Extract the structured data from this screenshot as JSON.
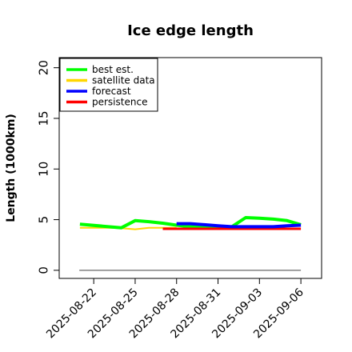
{
  "chart_data": {
    "type": "line",
    "title": "Ice edge length",
    "ylabel": "Length (1000km)",
    "xlabel": "",
    "x_ticks": [
      "2025-08-22",
      "2025-08-25",
      "2025-08-28",
      "2025-08-31",
      "2025-09-03",
      "2025-09-06"
    ],
    "x_tick_colors": [
      "#000000",
      "#000000",
      "#228b22",
      "#000000",
      "#000000",
      "#000000"
    ],
    "y_ticks": [
      "0",
      "5",
      "10",
      "15",
      "20"
    ],
    "ylim": [
      -0.8,
      21
    ],
    "xlim": [
      "2025-08-19T12:00",
      "2025-09-07T12:00"
    ],
    "grid": false,
    "legend_position": "top-left",
    "baseline": {
      "y": 0,
      "color": "#808080"
    },
    "series": [
      {
        "name": "best est.",
        "color": "#00ff00",
        "width": 4,
        "points": [
          [
            "2025-08-21",
            4.55
          ],
          [
            "2025-08-24",
            4.2
          ],
          [
            "2025-08-25",
            4.9
          ],
          [
            "2025-08-26",
            4.8
          ],
          [
            "2025-08-27",
            4.65
          ],
          [
            "2025-08-28",
            4.45
          ],
          [
            "2025-08-29",
            4.3
          ],
          [
            "2025-08-30",
            4.3
          ],
          [
            "2025-08-31",
            4.25
          ],
          [
            "2025-09-01",
            4.3
          ],
          [
            "2025-09-02",
            5.2
          ],
          [
            "2025-09-03",
            5.15
          ],
          [
            "2025-09-04",
            5.05
          ],
          [
            "2025-09-05",
            4.9
          ],
          [
            "2025-09-06",
            4.5
          ]
        ]
      },
      {
        "name": "satellite data",
        "color": "#ffd700",
        "width": 2,
        "points": [
          [
            "2025-08-21",
            4.2
          ],
          [
            "2025-08-22",
            4.2
          ],
          [
            "2025-08-23",
            4.2
          ],
          [
            "2025-08-24",
            4.15
          ],
          [
            "2025-08-25",
            4.05
          ],
          [
            "2025-08-26",
            4.2
          ],
          [
            "2025-08-27",
            4.2
          ],
          [
            "2025-08-28",
            4.2
          ]
        ]
      },
      {
        "name": "forecast",
        "color": "#0000ff",
        "width": 4,
        "points": [
          [
            "2025-08-28",
            4.6
          ],
          [
            "2025-08-29",
            4.6
          ],
          [
            "2025-08-30",
            4.5
          ],
          [
            "2025-08-31",
            4.4
          ],
          [
            "2025-09-01",
            4.3
          ],
          [
            "2025-09-02",
            4.3
          ],
          [
            "2025-09-03",
            4.3
          ],
          [
            "2025-09-04",
            4.3
          ],
          [
            "2025-09-05",
            4.4
          ],
          [
            "2025-09-06",
            4.45
          ]
        ]
      },
      {
        "name": "persistence",
        "color": "#ff0000",
        "width": 3,
        "points": [
          [
            "2025-08-27",
            4.1
          ],
          [
            "2025-08-28",
            4.1
          ],
          [
            "2025-08-29",
            4.1
          ],
          [
            "2025-08-30",
            4.1
          ],
          [
            "2025-08-31",
            4.1
          ],
          [
            "2025-09-01",
            4.1
          ],
          [
            "2025-09-02",
            4.1
          ],
          [
            "2025-09-03",
            4.1
          ],
          [
            "2025-09-04",
            4.1
          ],
          [
            "2025-09-05",
            4.1
          ],
          [
            "2025-09-06",
            4.1
          ]
        ]
      }
    ]
  }
}
